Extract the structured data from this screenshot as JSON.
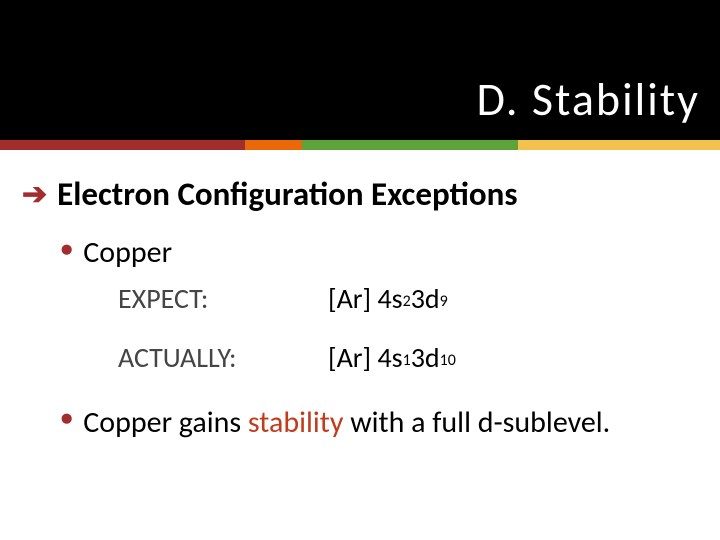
{
  "header": {
    "title": "D.  Stability",
    "title_color": "#ffffff",
    "bg_color": "#000000"
  },
  "color_bar": {
    "segments": [
      {
        "color": "#a32c2c",
        "width_pct": 34
      },
      {
        "color": "#eb6808",
        "width_pct": 8
      },
      {
        "color": "#5da33a",
        "width_pct": 30
      },
      {
        "color": "#f2c24c",
        "width_pct": 28
      }
    ]
  },
  "section": {
    "arrow": "➔",
    "title": "Electron Configuration Exceptions"
  },
  "bullets": {
    "copper_label": "Copper",
    "summary_pre": "Copper gains ",
    "summary_highlight": "stability",
    "summary_post": " with a full d-sublevel."
  },
  "config": {
    "expect_label": "EXPECT:",
    "expect_prefix": "[Ar] 4s",
    "expect_sup1": "2",
    "expect_mid": " 3d",
    "expect_sup2": "9",
    "actually_label": "ACTUALLY:",
    "actually_prefix": "[Ar] 4s",
    "actually_sup1": "1",
    "actually_mid": " 3d",
    "actually_sup2": "10"
  },
  "styles": {
    "accent_color": "#a32c2c",
    "highlight_color": "#c43a1a",
    "muted_color": "#454545",
    "text_color": "#000000"
  }
}
